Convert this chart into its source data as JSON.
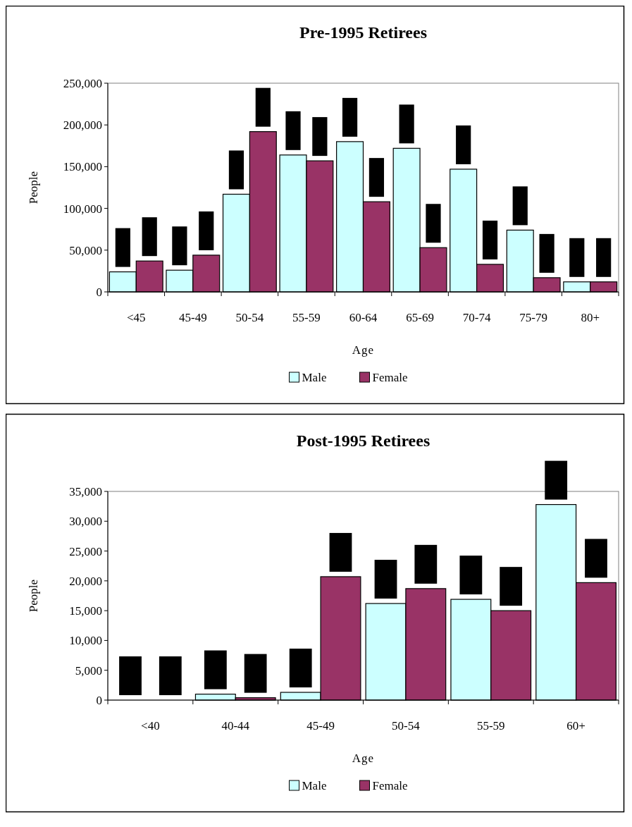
{
  "chart_data": [
    {
      "type": "bar",
      "title": "Pre-1995 Retirees",
      "xlabel": "Age",
      "ylabel": "People",
      "categories": [
        "<45",
        "45-49",
        "50-54",
        "55-59",
        "60-64",
        "65-69",
        "70-74",
        "75-79",
        "80+"
      ],
      "series": [
        {
          "name": "Male",
          "color": "#ccffff",
          "values": [
            24000,
            26000,
            117000,
            164000,
            180000,
            172000,
            147000,
            74000,
            12000
          ]
        },
        {
          "name": "Female",
          "color": "#993366",
          "values": [
            37000,
            44000,
            192000,
            157000,
            108000,
            53000,
            33000,
            17000,
            12000
          ]
        }
      ],
      "ylim": [
        0,
        250000
      ],
      "yticks": [
        {
          "value": 0,
          "label": "0"
        },
        {
          "value": 50000,
          "label": "50,000"
        },
        {
          "value": 100000,
          "label": "100,000"
        },
        {
          "value": 150000,
          "label": "150,000"
        },
        {
          "value": 200000,
          "label": "200,000"
        },
        {
          "value": 250000,
          "label": "250,000"
        }
      ],
      "grid": false,
      "legend": "bottom"
    },
    {
      "type": "bar",
      "title": "Post-1995 Retirees",
      "xlabel": "Age",
      "ylabel": "People",
      "categories": [
        "<40",
        "40-44",
        "45-49",
        "50-54",
        "55-59",
        "60+"
      ],
      "series": [
        {
          "name": "Male",
          "color": "#ccffff",
          "values": [
            0,
            1000,
            1300,
            16200,
            16900,
            32800
          ]
        },
        {
          "name": "Female",
          "color": "#993366",
          "values": [
            0,
            400,
            20700,
            18700,
            15000,
            19700
          ]
        }
      ],
      "ylim": [
        0,
        35000
      ],
      "yticks": [
        {
          "value": 0,
          "label": "0"
        },
        {
          "value": 5000,
          "label": "5,000"
        },
        {
          "value": 10000,
          "label": "10,000"
        },
        {
          "value": 15000,
          "label": "15,000"
        },
        {
          "value": 20000,
          "label": "20,000"
        },
        {
          "value": 25000,
          "label": "25,000"
        },
        {
          "value": 30000,
          "label": "30,000"
        },
        {
          "value": 35000,
          "label": "35,000"
        }
      ],
      "grid": false,
      "legend": "bottom"
    }
  ]
}
